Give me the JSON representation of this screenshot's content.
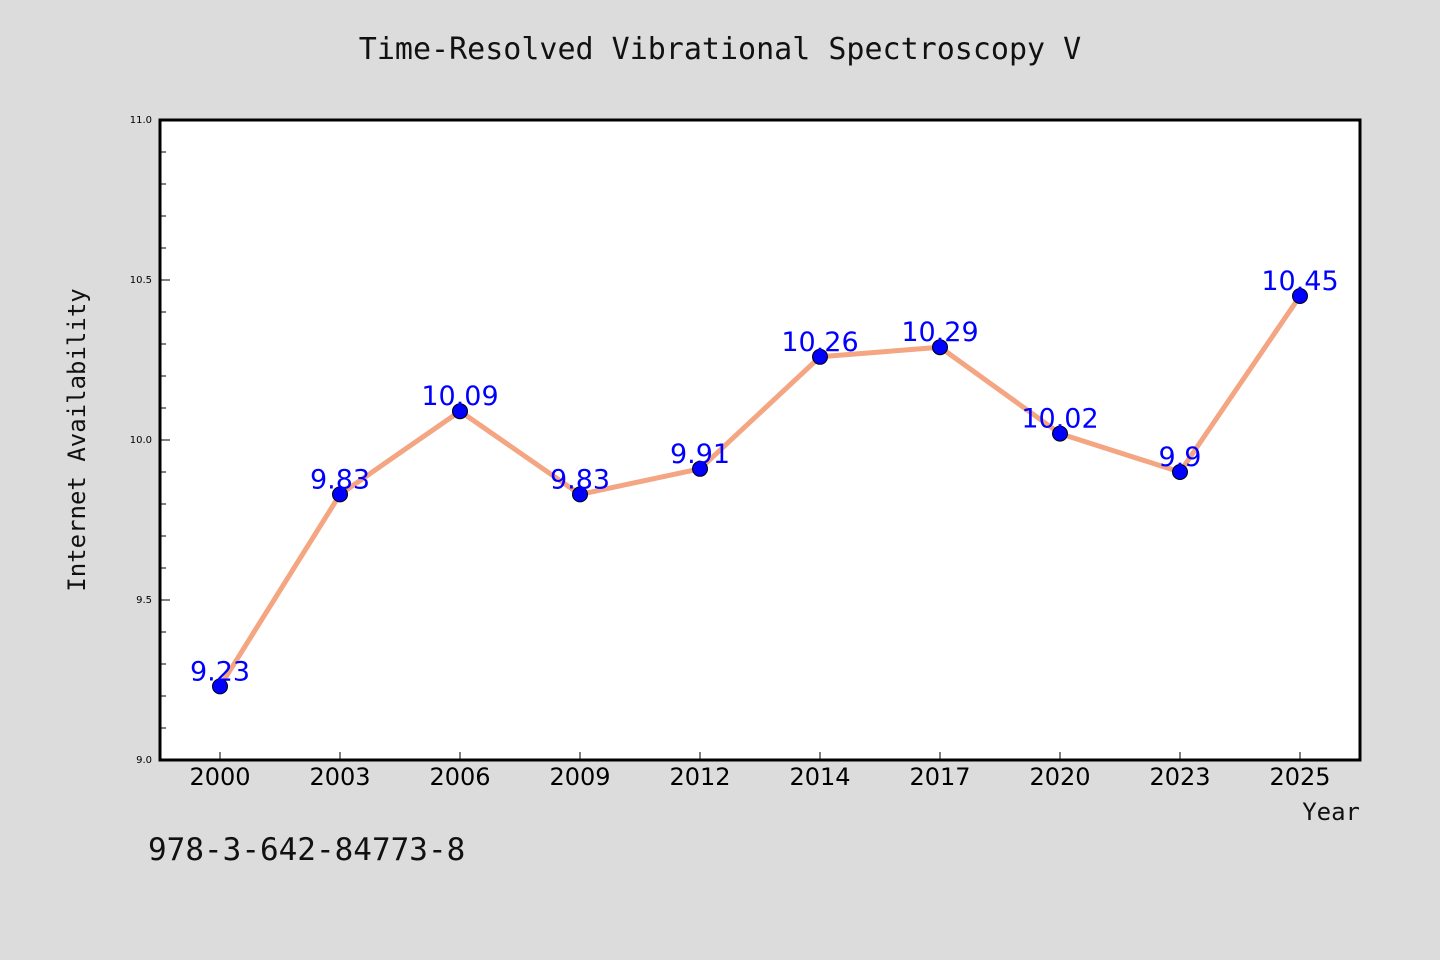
{
  "chart_data": {
    "type": "line",
    "title": "Time-Resolved Vibrational Spectroscopy V",
    "xlabel": "Year",
    "ylabel": "Internet Availability",
    "categories": [
      "2000",
      "2003",
      "2006",
      "2009",
      "2012",
      "2014",
      "2017",
      "2020",
      "2023",
      "2025"
    ],
    "series": [
      {
        "values": [
          9.23,
          9.83,
          10.09,
          9.83,
          9.91,
          10.26,
          10.29,
          10.02,
          9.9,
          10.45
        ],
        "labels": [
          "9.23",
          "9.83",
          "10.09",
          "9.83",
          "9.91",
          "10.26",
          "10.29",
          "10.02",
          "9.9",
          "10.45"
        ],
        "line_color": "#f4a582",
        "marker_color": "#0000ff"
      }
    ],
    "ylim": [
      9.0,
      11.0
    ],
    "yticks": [
      "9.0",
      "9.5",
      "10.0",
      "10.5",
      "11.0"
    ],
    "grid": false,
    "legend": "none"
  },
  "footer": {
    "code": "978-3-642-84773-8"
  }
}
